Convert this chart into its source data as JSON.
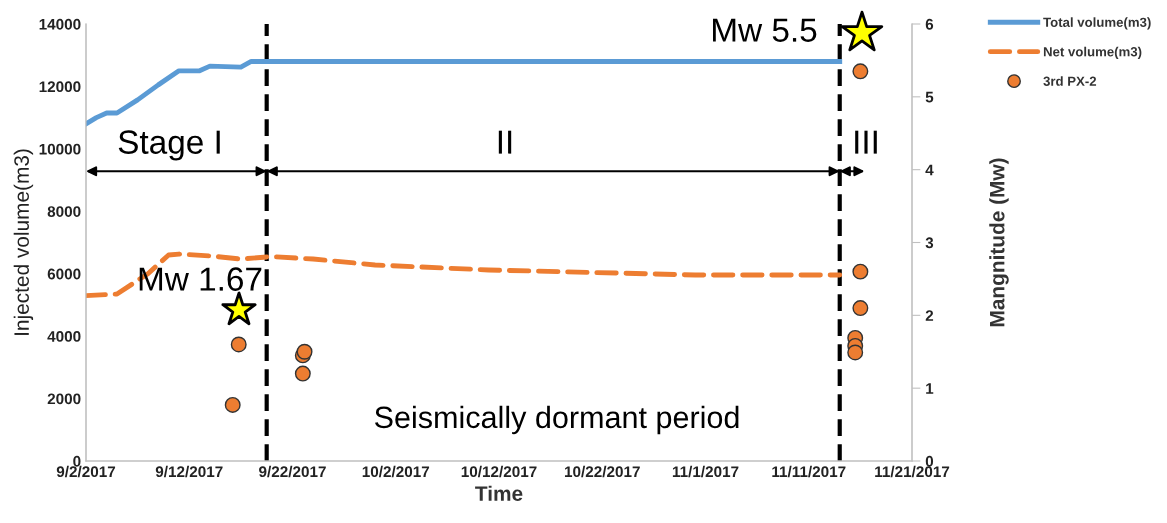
{
  "chart_data": {
    "type": "line",
    "xlabel": "Time",
    "ylabel": "Injected volume(m3)",
    "y2label": "Mangnitude (Mw)",
    "xlim": [
      "2017-09-02",
      "2017-11-21"
    ],
    "xticks": [
      {
        "value": "2017-09-02",
        "label": "9/2/2017"
      },
      {
        "value": "2017-09-12",
        "label": "9/12/2017"
      },
      {
        "value": "2017-09-22",
        "label": "9/22/2017"
      },
      {
        "value": "2017-10-02",
        "label": "10/2/2017"
      },
      {
        "value": "2017-10-12",
        "label": "10/12/2017"
      },
      {
        "value": "2017-10-22",
        "label": "10/22/2017"
      },
      {
        "value": "2017-11-01",
        "label": "11/1/2017"
      },
      {
        "value": "2017-11-11",
        "label": "11/11/2017"
      },
      {
        "value": "2017-11-21",
        "label": "11/21/2017"
      }
    ],
    "ylim": [
      0,
      14000
    ],
    "yticks": [
      0,
      2000,
      4000,
      6000,
      8000,
      10000,
      12000,
      14000
    ],
    "y2lim": [
      0,
      6
    ],
    "y2ticks": [
      0,
      1,
      2,
      3,
      4,
      5,
      6
    ],
    "grid": false,
    "legend": "right",
    "series": [
      {
        "name": "Total volume(m3)",
        "color": "#5b9bd5",
        "line_style": "solid",
        "x": [
          "2017-09-02",
          "2017-09-03",
          "2017-09-04",
          "2017-09-05",
          "2017-09-07",
          "2017-09-09",
          "2017-09-11",
          "2017-09-13",
          "2017-09-14",
          "2017-09-17",
          "2017-09-18",
          "2017-09-20",
          "2017-11-14"
        ],
        "values": [
          10800,
          11000,
          11150,
          11150,
          11570,
          12050,
          12500,
          12500,
          12650,
          12620,
          12800,
          12800,
          12800
        ]
      },
      {
        "name": "Net volume(m3)",
        "color": "#ed7d31",
        "line_style": "dashed",
        "x": [
          "2017-09-02",
          "2017-09-05",
          "2017-09-08",
          "2017-09-10",
          "2017-09-11",
          "2017-09-14",
          "2017-09-17",
          "2017-09-20",
          "2017-09-24",
          "2017-09-30",
          "2017-10-11",
          "2017-10-31",
          "2017-11-14"
        ],
        "values": [
          5300,
          5350,
          6000,
          6600,
          6630,
          6570,
          6470,
          6550,
          6470,
          6280,
          6120,
          5960,
          5960
        ]
      },
      {
        "name": "3rd PX-2",
        "type": "scatter",
        "axis": "y2",
        "marker": "circle",
        "color": "#ed7d31",
        "x": [
          "2017-09-16T05:00",
          "2017-09-16T19:00",
          "2017-09-23T00:00",
          "2017-09-23T04:00",
          "2017-09-23T00:00",
          "2017-11-16T00:00",
          "2017-11-16T00:00",
          "2017-11-16T00:00",
          "2017-11-15T12:00",
          "2017-11-15T12:00",
          "2017-11-15T12:00"
        ],
        "values": [
          0.77,
          1.6,
          1.45,
          1.5,
          1.2,
          5.35,
          2.6,
          2.1,
          1.69,
          1.58,
          1.49
        ]
      }
    ],
    "ref_lines": [
      {
        "axis": "x",
        "value": "2017-09-19T12:00",
        "color": "#000000",
        "line_style": "dashed"
      },
      {
        "axis": "x",
        "value": "2017-11-14",
        "color": "#000000",
        "line_style": "dashed"
      }
    ],
    "annotations": [
      "Stage I",
      "II",
      "III",
      "Mw 1.67",
      "Mw 5.5",
      "Seismically dormant period"
    ]
  }
}
